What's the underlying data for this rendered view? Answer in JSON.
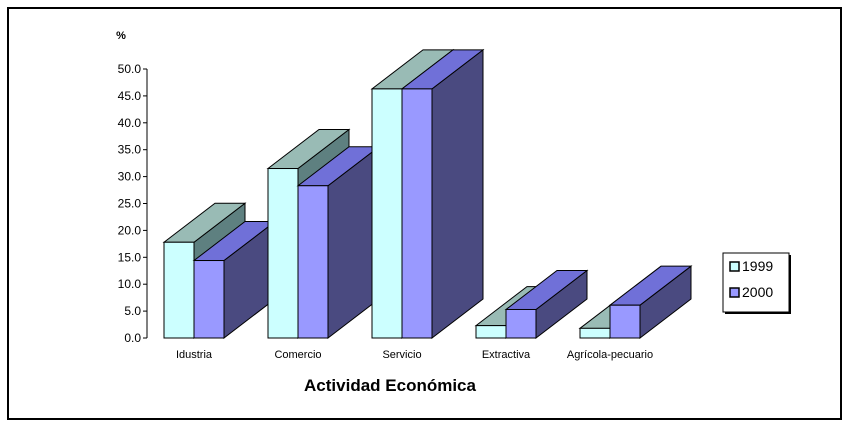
{
  "chart_data": {
    "type": "bar",
    "title": "",
    "xlabel": "Actividad Económica",
    "ylabel": "%",
    "ylim": [
      0,
      50
    ],
    "yticks": [
      "0.0",
      "5.0",
      "10.0",
      "15.0",
      "20.0",
      "25.0",
      "30.0",
      "35.0",
      "40.0",
      "45.0",
      "50.0"
    ],
    "categories": [
      "Idustria",
      "Comercio",
      "Servicio",
      "Extractiva",
      "Agrícola-pecuario"
    ],
    "series": [
      {
        "name": "1999",
        "values": [
          17.8,
          31.5,
          46.3,
          2.3,
          1.8
        ]
      },
      {
        "name": "2000",
        "values": [
          14.4,
          28.3,
          46.3,
          5.3,
          6.1
        ]
      }
    ],
    "legend_position": "right",
    "three_d": true,
    "grid": false,
    "colors": {
      "s1_front": "#CCFFFF",
      "s1_top": "#99BBB5",
      "s1_side": "#5E8080",
      "s2_front": "#9999FF",
      "s2_top": "#7070D8",
      "s2_side": "#4A4A80"
    }
  }
}
